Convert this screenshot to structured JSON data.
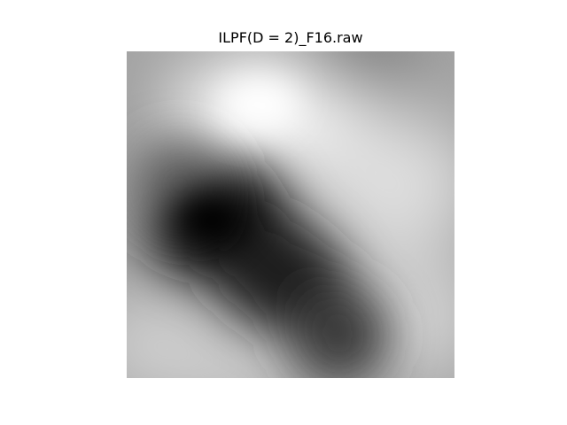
{
  "title": "ILPF(D = 2)_F16.raw",
  "image": {
    "description_kind": "grayscale low-pass filtered image",
    "colormap": "gray",
    "axes_visible": false
  }
}
